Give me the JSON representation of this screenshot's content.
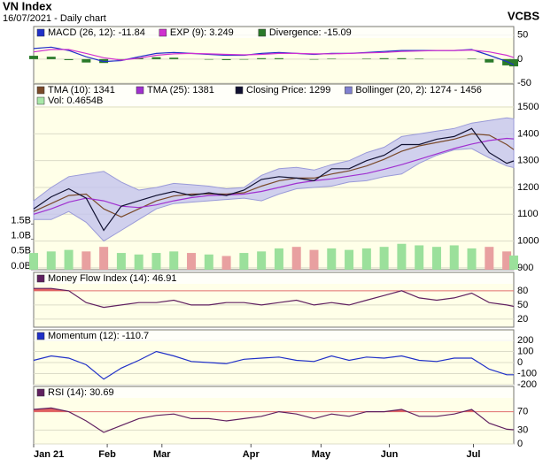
{
  "header": {
    "title": "VN Index",
    "subtitle": "16/07/2021 - Daily chart",
    "source": "VCBS"
  },
  "chart_data": [
    {
      "type": "line",
      "x": [
        0,
        5,
        10,
        15,
        20,
        25,
        30,
        35,
        40,
        45,
        50,
        55,
        60,
        65,
        70,
        75,
        80,
        85,
        90,
        95,
        100,
        105,
        110,
        115,
        120,
        125,
        130,
        135,
        137
      ],
      "xlim": [
        0,
        137
      ],
      "ylim": [
        -50,
        68
      ],
      "yticks": [
        -50,
        0,
        50
      ],
      "series": [
        {
          "name": "MACD (26, 12): -11.84",
          "color": "#2030c8",
          "kind": "line",
          "values": [
            22,
            25,
            18,
            5,
            -5,
            -3,
            5,
            12,
            14,
            12,
            10,
            8,
            8,
            12,
            14,
            12,
            10,
            12,
            12,
            14,
            16,
            18,
            18,
            18,
            18,
            20,
            8,
            -5,
            -11.84
          ]
        },
        {
          "name": "EXP (9): 3.249",
          "color": "#d030d0",
          "kind": "line",
          "values": [
            15,
            20,
            20,
            12,
            3,
            -2,
            2,
            8,
            11,
            12,
            11,
            10,
            9,
            10,
            12,
            12,
            11,
            11,
            12,
            13,
            14,
            16,
            17,
            18,
            18,
            19,
            15,
            8,
            3.249
          ]
        },
        {
          "name": "Divergence: -15.09",
          "color": "#2a7a2a",
          "kind": "bar",
          "values": [
            7,
            5,
            -2,
            -7,
            -8,
            -1,
            3,
            4,
            3,
            0,
            -1,
            -2,
            -1,
            2,
            2,
            0,
            -1,
            1,
            0,
            1,
            2,
            2,
            1,
            0,
            0,
            1,
            -7,
            -13,
            -15.09
          ]
        }
      ]
    },
    {
      "type": "line",
      "x": [
        0,
        5,
        10,
        15,
        20,
        25,
        30,
        35,
        40,
        45,
        50,
        55,
        60,
        65,
        70,
        75,
        80,
        85,
        90,
        95,
        100,
        105,
        110,
        115,
        120,
        125,
        130,
        135,
        137
      ],
      "xlim": [
        0,
        137
      ],
      "ylim": [
        893,
        1586
      ],
      "yticks": [
        900,
        1000,
        1100,
        1200,
        1300,
        1400,
        1500
      ],
      "y2lim": [
        0,
        6.1
      ],
      "y2ticks": [
        {
          "value": 0,
          "label": "0.0B"
        },
        {
          "value": 0.5,
          "label": "0.5B"
        },
        {
          "value": 1,
          "label": "1.0B"
        },
        {
          "value": 1.5,
          "label": "1.5B"
        }
      ],
      "up_color": "#9be09b",
      "down_color": "#e8a0a0",
      "series": [
        {
          "name": "TMA (10): 1341",
          "color": "#7a4a2a",
          "kind": "line",
          "values": [
            1110,
            1140,
            1170,
            1175,
            1120,
            1090,
            1120,
            1150,
            1168,
            1175,
            1176,
            1175,
            1180,
            1205,
            1225,
            1235,
            1235,
            1250,
            1262,
            1280,
            1305,
            1335,
            1355,
            1368,
            1380,
            1400,
            1395,
            1360,
            1341
          ]
        },
        {
          "name": "TMA (25): 1381",
          "color": "#a030d0",
          "kind": "line",
          "values": [
            1100,
            1120,
            1145,
            1160,
            1150,
            1130,
            1125,
            1135,
            1150,
            1162,
            1170,
            1172,
            1175,
            1185,
            1200,
            1215,
            1225,
            1232,
            1242,
            1252,
            1268,
            1285,
            1305,
            1325,
            1345,
            1362,
            1375,
            1383,
            1381
          ]
        },
        {
          "name": "Closing Price: 1299",
          "color": "#101030",
          "kind": "line",
          "values": [
            1120,
            1165,
            1195,
            1160,
            1040,
            1130,
            1150,
            1170,
            1185,
            1170,
            1180,
            1170,
            1190,
            1230,
            1240,
            1235,
            1225,
            1270,
            1270,
            1300,
            1320,
            1360,
            1360,
            1380,
            1390,
            1420,
            1330,
            1290,
            1299
          ]
        },
        {
          "name": "Bollinger (20, 2): 1274 - 1456",
          "color": "#c4c4ee",
          "kind": "band",
          "values": [
            1150,
            1200,
            1240,
            1250,
            1260,
            1220,
            1190,
            1200,
            1215,
            1210,
            1205,
            1195,
            1200,
            1245,
            1270,
            1275,
            1265,
            1285,
            1300,
            1330,
            1350,
            1390,
            1400,
            1410,
            1420,
            1440,
            1450,
            1460,
            1456
          ],
          "lower": [
            1080,
            1080,
            1110,
            1070,
            1000,
            1040,
            1080,
            1120,
            1140,
            1145,
            1150,
            1155,
            1160,
            1150,
            1175,
            1195,
            1200,
            1205,
            1220,
            1225,
            1240,
            1250,
            1290,
            1320,
            1340,
            1345,
            1310,
            1280,
            1274
          ]
        },
        {
          "name": "Vol: 0.4654B",
          "color": "#a8e8a8",
          "kind": "volume",
          "axis": "y2",
          "values": [
            0.55,
            0.6,
            0.65,
            0.6,
            0.75,
            0.55,
            0.5,
            0.55,
            0.6,
            0.55,
            0.5,
            0.45,
            0.55,
            0.6,
            0.7,
            0.75,
            0.65,
            0.7,
            0.65,
            0.7,
            0.75,
            0.85,
            0.8,
            0.75,
            0.8,
            0.7,
            0.75,
            0.6,
            0.4654
          ]
        }
      ]
    },
    {
      "type": "line",
      "x": [
        0,
        5,
        10,
        15,
        20,
        25,
        30,
        35,
        40,
        45,
        50,
        55,
        60,
        65,
        70,
        75,
        80,
        85,
        90,
        95,
        100,
        105,
        110,
        115,
        120,
        125,
        130,
        135,
        137
      ],
      "xlim": [
        0,
        137
      ],
      "ylim": [
        3,
        119
      ],
      "yticks": [
        20,
        50,
        80
      ],
      "overbought": 80,
      "fill_color": "#e06060",
      "series": [
        {
          "name": "Money Flow Index (14): 46.91",
          "color": "#602060",
          "kind": "line",
          "values": [
            85,
            85,
            80,
            55,
            45,
            50,
            55,
            55,
            60,
            50,
            50,
            55,
            55,
            50,
            55,
            60,
            50,
            55,
            50,
            60,
            70,
            80,
            65,
            60,
            65,
            75,
            55,
            50,
            46.91
          ]
        }
      ]
    },
    {
      "type": "line",
      "x": [
        0,
        5,
        10,
        15,
        20,
        25,
        30,
        35,
        40,
        45,
        50,
        55,
        60,
        65,
        70,
        75,
        80,
        85,
        90,
        95,
        100,
        105,
        110,
        115,
        120,
        125,
        130,
        135,
        137
      ],
      "xlim": [
        0,
        137
      ],
      "ylim": [
        -200,
        296
      ],
      "yticks": [
        -200,
        -100,
        0,
        100,
        200
      ],
      "series": [
        {
          "name": "Momentum (12): -110.7",
          "color": "#2030c8",
          "kind": "line",
          "values": [
            20,
            60,
            40,
            -20,
            -150,
            -50,
            20,
            100,
            60,
            10,
            0,
            -10,
            30,
            40,
            50,
            20,
            10,
            60,
            20,
            50,
            40,
            60,
            20,
            10,
            40,
            40,
            -60,
            -110,
            -110.7
          ]
        }
      ]
    },
    {
      "type": "line",
      "x": [
        0,
        5,
        10,
        15,
        20,
        25,
        30,
        35,
        40,
        45,
        50,
        55,
        60,
        65,
        70,
        75,
        80,
        85,
        90,
        95,
        100,
        105,
        110,
        115,
        120,
        125,
        130,
        135,
        137
      ],
      "xlim": [
        0,
        137
      ],
      "ylim": [
        0,
        125
      ],
      "yticks": [
        0,
        30,
        70
      ],
      "overbought": 70,
      "fill_color": "#e06060",
      "xticks": [
        {
          "value": 0,
          "label": "Jan 21"
        },
        {
          "value": 21,
          "label": "Feb"
        },
        {
          "value": 36.6,
          "label": "Mar"
        },
        {
          "value": 62,
          "label": "Apr"
        },
        {
          "value": 82,
          "label": "May"
        },
        {
          "value": 101.5,
          "label": "Jun"
        },
        {
          "value": 125.5,
          "label": "Jul"
        }
      ],
      "series": [
        {
          "name": "RSI (14): 30.69",
          "color": "#602060",
          "kind": "line",
          "values": [
            75,
            78,
            70,
            50,
            25,
            40,
            55,
            62,
            65,
            55,
            55,
            50,
            55,
            60,
            70,
            65,
            55,
            65,
            60,
            70,
            70,
            75,
            60,
            60,
            65,
            75,
            45,
            32,
            30.69
          ]
        }
      ]
    }
  ]
}
